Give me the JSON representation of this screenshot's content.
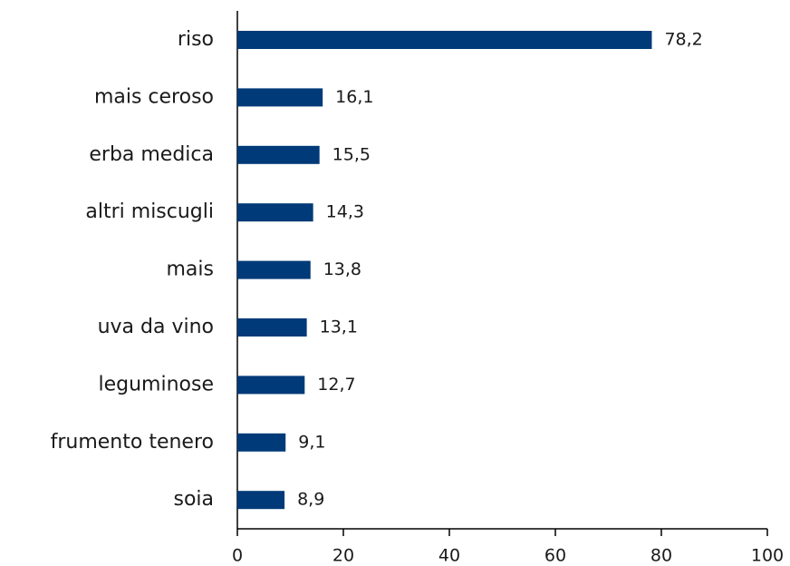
{
  "chart_data": {
    "type": "bar",
    "orientation": "horizontal",
    "categories": [
      "riso",
      "mais ceroso",
      "erba medica",
      "altri miscugli",
      "mais",
      "uva da vino",
      "leguminose",
      "frumento tenero",
      "soia"
    ],
    "values": [
      78.2,
      16.1,
      15.5,
      14.3,
      13.8,
      13.1,
      12.7,
      9.1,
      8.9
    ],
    "value_labels": [
      "78,2",
      "16,1",
      "15,5",
      "14,3",
      "13,8",
      "13,1",
      "12,7",
      "9,1",
      "8,9"
    ],
    "color": "#003a78",
    "xlim": [
      0,
      100
    ],
    "xticks": [
      0,
      20,
      40,
      60,
      80,
      100
    ]
  }
}
